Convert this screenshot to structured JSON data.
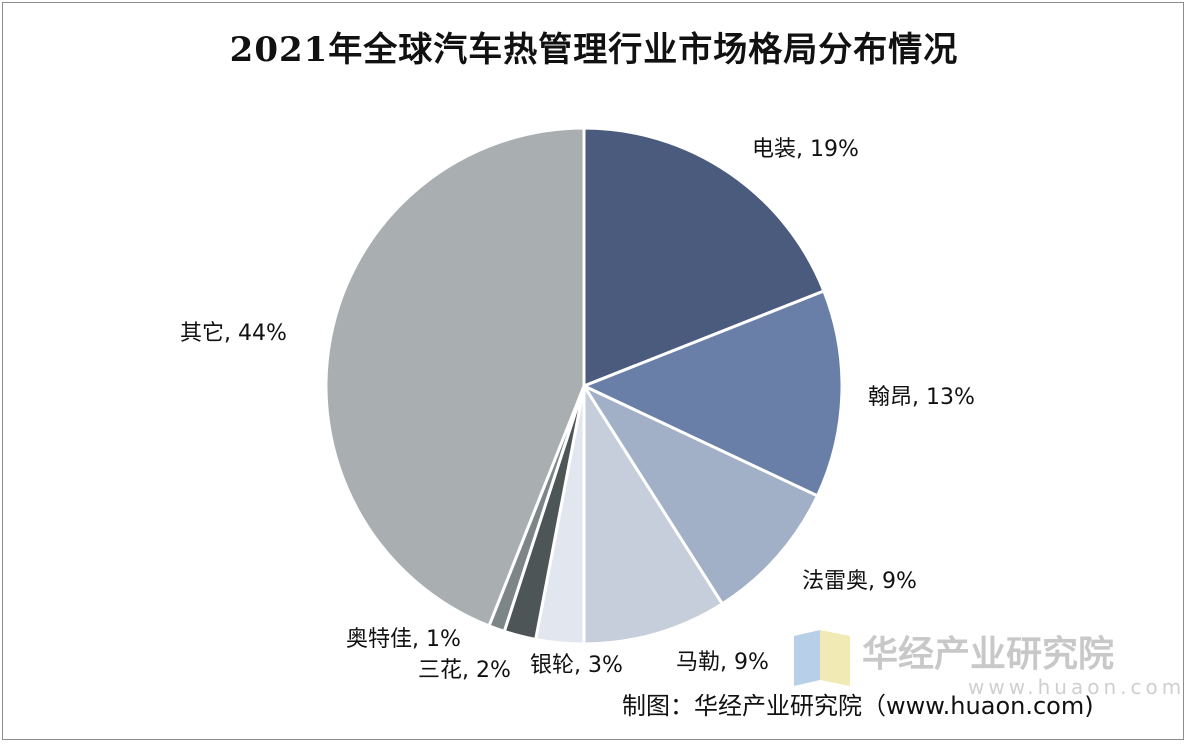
{
  "title": "2021年全球汽车热管理行业市场格局分布情况",
  "colors": {
    "denso": "#4a5b7d",
    "hanon": "#6a7fa8",
    "valeo": "#a2b0c7",
    "mahle": "#c6cedb",
    "yinlun": "#e2e6ee",
    "sanhua": "#4d5557",
    "aotejia": "#7d8587",
    "others": "#a9afb1",
    "border": "#ffffff"
  },
  "chart_data": {
    "type": "pie",
    "title": "2021年全球汽车热管理行业市场格局分布情况",
    "start_angle_deg": 0,
    "direction": "clockwise",
    "slices": [
      {
        "name": "电装",
        "value": 19,
        "label": "电装, 19%",
        "color_key": "denso"
      },
      {
        "name": "翰昂",
        "value": 13,
        "label": "翰昂, 13%",
        "color_key": "hanon"
      },
      {
        "name": "法雷奥",
        "value": 9,
        "label": "法雷奥, 9%",
        "color_key": "valeo"
      },
      {
        "name": "马勒",
        "value": 9,
        "label": "马勒, 9%",
        "color_key": "mahle"
      },
      {
        "name": "银轮",
        "value": 3,
        "label": "银轮, 3%",
        "color_key": "yinlun"
      },
      {
        "name": "三花",
        "value": 2,
        "label": "三花, 2%",
        "color_key": "sanhua"
      },
      {
        "name": "奥特佳",
        "value": 1,
        "label": "奥特佳, 1%",
        "color_key": "aotejia"
      },
      {
        "name": "其它",
        "value": 44,
        "label": "其它, 44%",
        "color_key": "others"
      }
    ]
  },
  "watermark": {
    "name": "华经产业研究院",
    "url": "www.huaon.com",
    "logo_icon": "huajing-logo-icon"
  },
  "credit": "制图：华经产业研究院（www.huaon.com)"
}
